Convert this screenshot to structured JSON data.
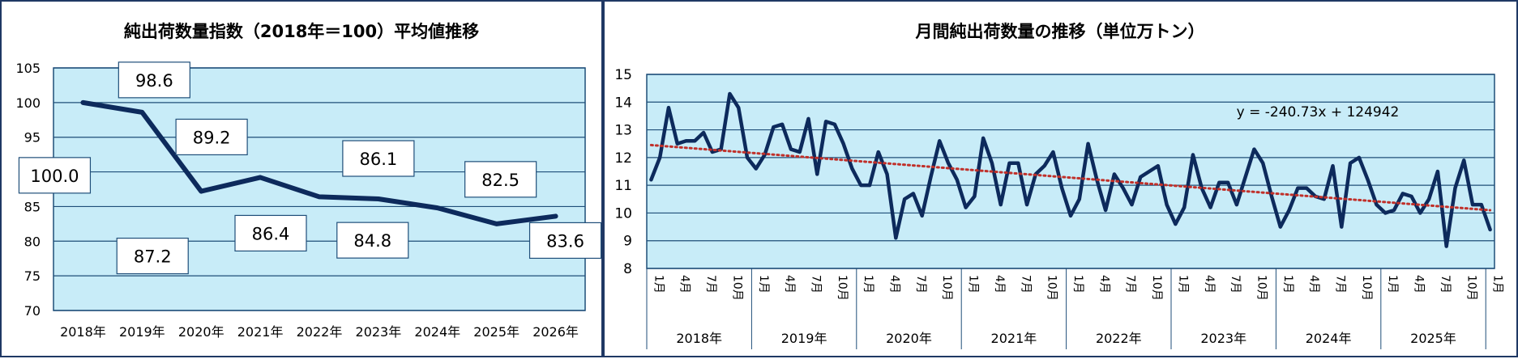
{
  "charts": {
    "left": {
      "title": "純出荷数量指数（2018年＝100）平均値推移"
    },
    "right": {
      "title": "月間純出荷数量の推移（単位万トン）",
      "trendline_label": "y = -240.73x + 124942"
    }
  },
  "chart_data": [
    {
      "type": "line",
      "title": "純出荷数量指数（2018年＝100）平均値推移",
      "categories": [
        "2018年",
        "2019年",
        "2020年",
        "2021年",
        "2022年",
        "2023年",
        "2024年",
        "2025年",
        "2026年"
      ],
      "values": [
        100.0,
        98.6,
        87.2,
        89.2,
        86.4,
        86.1,
        84.8,
        82.5,
        83.6
      ],
      "data_labels": [
        "100.0",
        "98.6",
        "87.2",
        "89.2",
        "86.4",
        "86.1",
        "84.8",
        "82.5",
        "83.6"
      ],
      "ylim": [
        70,
        105
      ],
      "yticks": [
        "70",
        "75",
        "80",
        "85",
        "90",
        "95",
        "100",
        "105"
      ],
      "grid": true,
      "colors": {
        "line": "#0d2a5c",
        "plot_bg": "#c8ecf8",
        "grid": "#1f4e79",
        "label_border": "#1f4e79"
      }
    },
    {
      "type": "line",
      "title": "月間純出荷数量の推移（単位万トン）",
      "year_labels": [
        "2018年",
        "2019年",
        "2020年",
        "2021年",
        "2022年",
        "2023年",
        "2024年",
        "2025年"
      ],
      "month_tick_labels": [
        "1月",
        "4月",
        "7月",
        "10月"
      ],
      "final_tick_label": "1月",
      "values": [
        11.2,
        12.0,
        13.8,
        12.5,
        12.6,
        12.6,
        12.9,
        12.2,
        12.3,
        14.3,
        13.8,
        12.0,
        11.6,
        12.1,
        13.1,
        13.2,
        12.3,
        12.2,
        13.4,
        11.4,
        13.3,
        13.2,
        12.5,
        11.6,
        11.0,
        11.0,
        12.2,
        11.4,
        9.1,
        10.5,
        10.7,
        9.9,
        11.3,
        12.6,
        11.8,
        11.2,
        10.2,
        10.6,
        12.7,
        11.8,
        10.3,
        11.8,
        11.8,
        10.3,
        11.4,
        11.7,
        12.2,
        10.9,
        9.9,
        10.5,
        12.5,
        11.2,
        10.1,
        11.4,
        10.9,
        10.3,
        11.3,
        11.5,
        11.7,
        10.3,
        9.6,
        10.2,
        12.1,
        10.9,
        10.2,
        11.1,
        11.1,
        10.3,
        11.3,
        12.3,
        11.8,
        10.6,
        9.5,
        10.1,
        10.9,
        10.9,
        10.6,
        10.5,
        11.7,
        9.5,
        11.8,
        12.0,
        11.2,
        10.3,
        10.0,
        10.1,
        10.7,
        10.6,
        10.0,
        10.5,
        11.5,
        8.8,
        10.9,
        11.9,
        10.3,
        10.3,
        9.4
      ],
      "trendline": {
        "start": 12.45,
        "end": 10.1
      },
      "trendline_equation": "y = -240.73x + 124942",
      "ylim": [
        8,
        15
      ],
      "yticks": [
        "8",
        "9",
        "10",
        "11",
        "12",
        "13",
        "14",
        "15"
      ],
      "grid": true,
      "colors": {
        "line": "#0d2a5c",
        "trend": "#c0302a",
        "plot_bg": "#c8ecf8",
        "grid": "#1f4e79"
      }
    }
  ]
}
